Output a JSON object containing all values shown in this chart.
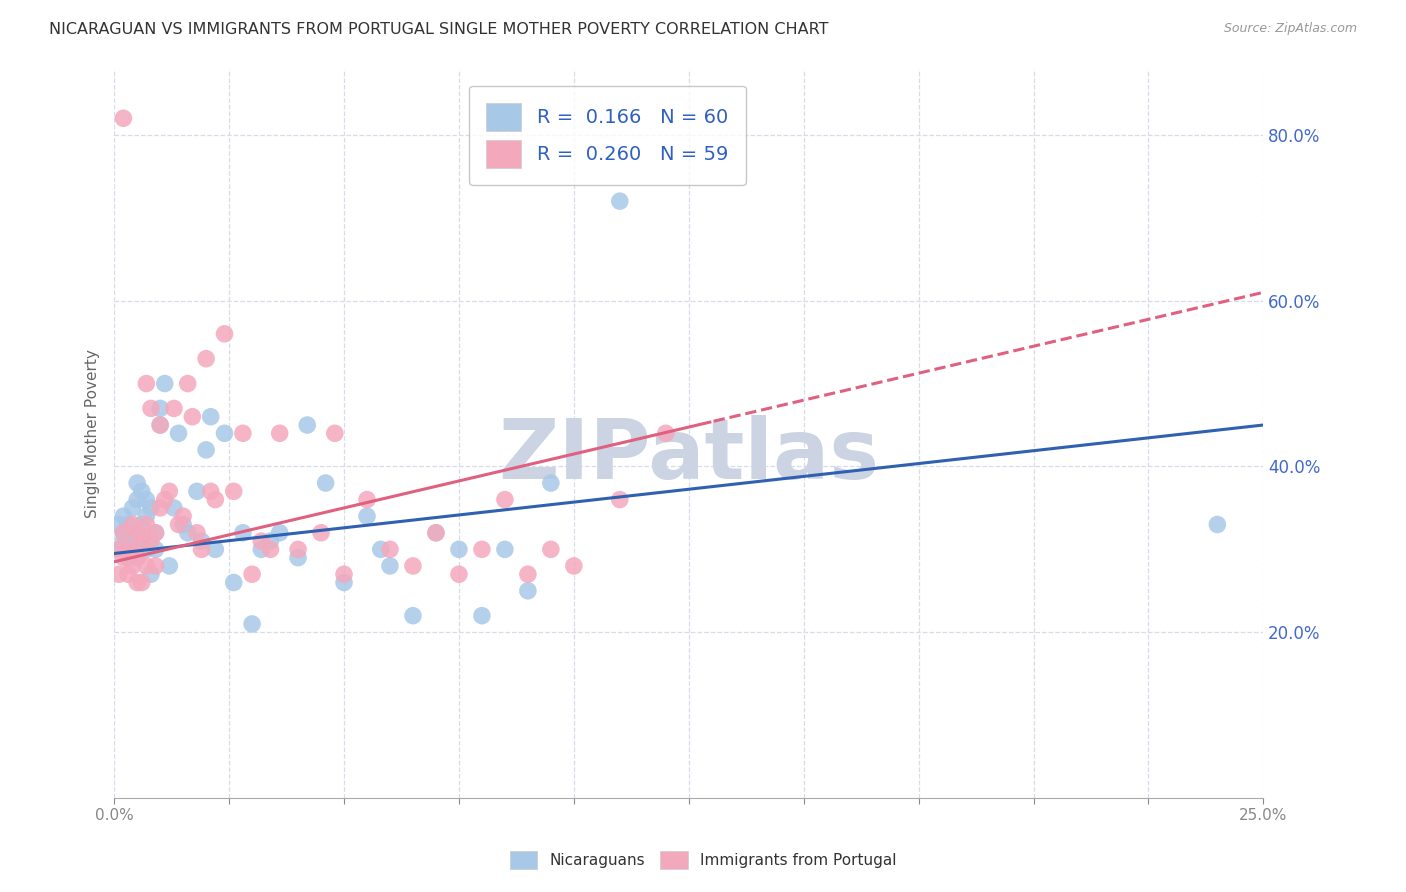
{
  "title": "NICARAGUAN VS IMMIGRANTS FROM PORTUGAL SINGLE MOTHER POVERTY CORRELATION CHART",
  "source": "Source: ZipAtlas.com",
  "ylabel": "Single Mother Poverty",
  "y_ticks": [
    0.2,
    0.4,
    0.6,
    0.8
  ],
  "y_tick_labels": [
    "20.0%",
    "40.0%",
    "60.0%",
    "80.0%"
  ],
  "blue_color": "#a8c8e8",
  "pink_color": "#f4a8bc",
  "blue_line_color": "#3060b0",
  "pink_line_color": "#e06080",
  "xlim": [
    0.0,
    0.25
  ],
  "ylim": [
    0.0,
    0.88
  ],
  "nicaraguan_x": [
    0.001,
    0.001,
    0.002,
    0.002,
    0.002,
    0.003,
    0.003,
    0.003,
    0.004,
    0.004,
    0.004,
    0.005,
    0.005,
    0.005,
    0.006,
    0.006,
    0.006,
    0.007,
    0.007,
    0.007,
    0.008,
    0.008,
    0.009,
    0.009,
    0.01,
    0.01,
    0.011,
    0.012,
    0.013,
    0.014,
    0.015,
    0.016,
    0.018,
    0.019,
    0.02,
    0.021,
    0.022,
    0.024,
    0.026,
    0.028,
    0.03,
    0.032,
    0.034,
    0.036,
    0.04,
    0.042,
    0.046,
    0.05,
    0.055,
    0.058,
    0.06,
    0.065,
    0.07,
    0.075,
    0.08,
    0.085,
    0.09,
    0.095,
    0.11,
    0.24
  ],
  "nicaraguan_y": [
    0.3,
    0.33,
    0.32,
    0.31,
    0.34,
    0.29,
    0.33,
    0.31,
    0.35,
    0.3,
    0.32,
    0.29,
    0.38,
    0.36,
    0.33,
    0.37,
    0.31,
    0.3,
    0.36,
    0.34,
    0.35,
    0.27,
    0.32,
    0.3,
    0.45,
    0.47,
    0.5,
    0.28,
    0.35,
    0.44,
    0.33,
    0.32,
    0.37,
    0.31,
    0.42,
    0.46,
    0.3,
    0.44,
    0.26,
    0.32,
    0.21,
    0.3,
    0.31,
    0.32,
    0.29,
    0.45,
    0.38,
    0.26,
    0.34,
    0.3,
    0.28,
    0.22,
    0.32,
    0.3,
    0.22,
    0.3,
    0.25,
    0.38,
    0.72,
    0.33
  ],
  "portugal_x": [
    0.001,
    0.001,
    0.002,
    0.002,
    0.003,
    0.003,
    0.004,
    0.004,
    0.004,
    0.005,
    0.005,
    0.005,
    0.006,
    0.006,
    0.007,
    0.007,
    0.007,
    0.008,
    0.008,
    0.009,
    0.009,
    0.01,
    0.01,
    0.011,
    0.012,
    0.013,
    0.014,
    0.015,
    0.016,
    0.017,
    0.018,
    0.019,
    0.02,
    0.021,
    0.022,
    0.024,
    0.026,
    0.028,
    0.03,
    0.032,
    0.034,
    0.036,
    0.04,
    0.045,
    0.048,
    0.05,
    0.055,
    0.06,
    0.065,
    0.07,
    0.075,
    0.08,
    0.085,
    0.09,
    0.095,
    0.1,
    0.11,
    0.12,
    0.002
  ],
  "portugal_y": [
    0.3,
    0.27,
    0.29,
    0.32,
    0.3,
    0.27,
    0.33,
    0.3,
    0.28,
    0.26,
    0.32,
    0.29,
    0.31,
    0.26,
    0.33,
    0.5,
    0.28,
    0.47,
    0.31,
    0.32,
    0.28,
    0.35,
    0.45,
    0.36,
    0.37,
    0.47,
    0.33,
    0.34,
    0.5,
    0.46,
    0.32,
    0.3,
    0.53,
    0.37,
    0.36,
    0.56,
    0.37,
    0.44,
    0.27,
    0.31,
    0.3,
    0.44,
    0.3,
    0.32,
    0.44,
    0.27,
    0.36,
    0.3,
    0.28,
    0.32,
    0.27,
    0.3,
    0.36,
    0.27,
    0.3,
    0.28,
    0.36,
    0.44,
    0.82
  ],
  "watermark_text": "ZIPatlas",
  "watermark_color": "#ccd4e4",
  "background_color": "#ffffff",
  "grid_color": "#d8dce8",
  "pink_data_xlim": 0.13,
  "blue_intercept": 0.295,
  "blue_slope": 0.62,
  "pink_intercept": 0.285,
  "pink_slope": 1.3
}
